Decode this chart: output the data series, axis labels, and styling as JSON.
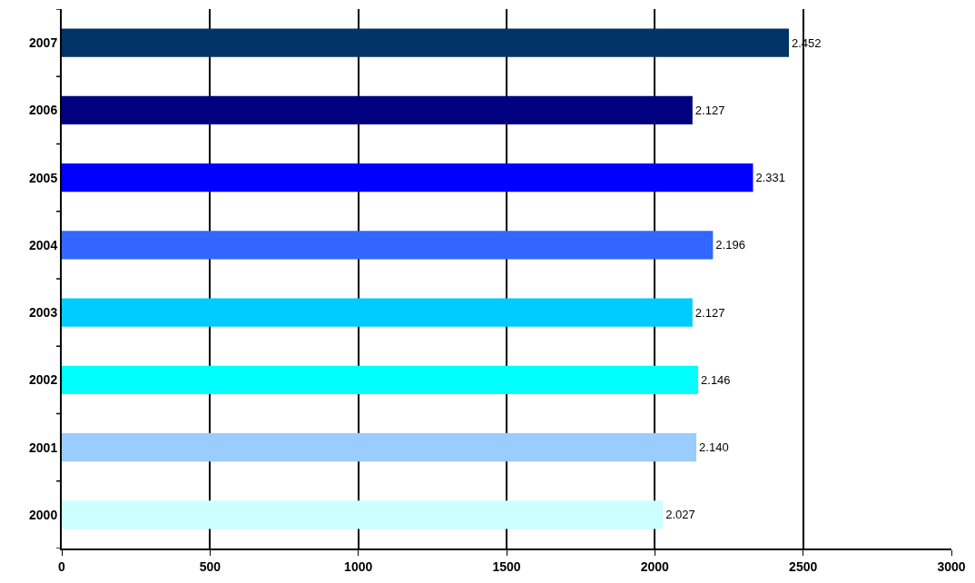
{
  "chart_data": {
    "type": "bar",
    "orientation": "horizontal",
    "categories": [
      "2007",
      "2006",
      "2005",
      "2004",
      "2003",
      "2002",
      "2001",
      "2000"
    ],
    "values": [
      2452,
      2127,
      2331,
      2196,
      2127,
      2146,
      2140,
      2027
    ],
    "value_labels": [
      "2.452",
      "2.127",
      "2.331",
      "2.196",
      "2.127",
      "2.146",
      "2.140",
      "2.027"
    ],
    "colors": [
      "#003366",
      "#000080",
      "#0000ff",
      "#3366ff",
      "#00ccff",
      "#00ffff",
      "#99ccff",
      "#ccffff"
    ],
    "xlim": [
      0,
      3000
    ],
    "xticks": [
      0,
      500,
      1000,
      1500,
      2000,
      2500,
      3000
    ],
    "grid": "x"
  }
}
